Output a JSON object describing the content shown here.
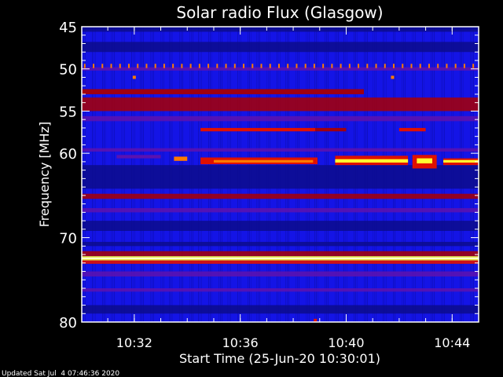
{
  "chart_data": {
    "type": "heatmap",
    "title": "Solar radio Flux (Glasgow)",
    "xlabel": "Start Time (25-Jun-20 10:30:01)",
    "ylabel": "Frequency [MHz]",
    "x_start": "10:30:01",
    "x_end": "10:45:00",
    "xticks": [
      "10:32",
      "10:36",
      "10:40",
      "10:44"
    ],
    "ylim": [
      45,
      80
    ],
    "yticks": [
      45,
      50,
      55,
      60,
      70,
      80
    ],
    "y_inverted": true,
    "colors": {
      "background": "#1414e6",
      "navy": "#0c0c90",
      "purple": "#5a12b0",
      "darkred": "#a00010",
      "red": "#e01000",
      "orange": "#ff7a00",
      "yellow": "#ffff30",
      "white": "#ffffe0"
    },
    "bands": [
      {
        "f0": 45.0,
        "f1": 45.6,
        "level": "navy"
      },
      {
        "f0": 46.8,
        "f1": 48.0,
        "level": "navy"
      },
      {
        "f0": 49.8,
        "f1": 50.2,
        "level": "purple"
      },
      {
        "f0": 53.4,
        "f1": 55.0,
        "level": "darkred"
      },
      {
        "f0": 55.6,
        "f1": 56.2,
        "level": "purple"
      },
      {
        "f0": 59.4,
        "f1": 59.8,
        "level": "purple"
      },
      {
        "f0": 61.4,
        "f1": 64.2,
        "level": "navy"
      },
      {
        "f0": 64.8,
        "f1": 65.4,
        "level": "darkred"
      },
      {
        "f0": 66.5,
        "f1": 67.0,
        "level": "purple"
      },
      {
        "f0": 68.0,
        "f1": 69.2,
        "level": "navy"
      },
      {
        "f0": 70.5,
        "f1": 71.0,
        "level": "navy"
      },
      {
        "f0": 71.6,
        "f1": 72.2,
        "level": "darkred"
      },
      {
        "f0": 72.2,
        "f1": 72.7,
        "level": "yellow"
      },
      {
        "f0": 72.35,
        "f1": 72.55,
        "level": "white"
      },
      {
        "f0": 72.7,
        "f1": 73.1,
        "level": "red"
      },
      {
        "f0": 74.0,
        "f1": 74.6,
        "level": "purple"
      },
      {
        "f0": 76.0,
        "f1": 76.4,
        "level": "purple"
      },
      {
        "f0": 78.0,
        "f1": 79.0,
        "level": "navy"
      }
    ],
    "segments": [
      {
        "t0": "10:30:01",
        "t1": "10:40:40",
        "f0": 52.4,
        "f1": 53.0,
        "level": "darkred"
      },
      {
        "t0": "10:34:30",
        "t1": "10:38:50",
        "f0": 57.0,
        "f1": 57.4,
        "level": "red"
      },
      {
        "t0": "10:38:50",
        "t1": "10:40:00",
        "f0": 57.0,
        "f1": 57.4,
        "level": "darkred"
      },
      {
        "t0": "10:42:00",
        "t1": "10:43:00",
        "f0": 57.0,
        "f1": 57.4,
        "level": "red"
      },
      {
        "t0": "10:31:20",
        "t1": "10:33:00",
        "f0": 60.2,
        "f1": 60.6,
        "level": "purple"
      },
      {
        "t0": "10:33:30",
        "t1": "10:34:00",
        "f0": 60.4,
        "f1": 60.9,
        "level": "orange"
      },
      {
        "t0": "10:34:30",
        "t1": "10:38:55",
        "f0": 60.5,
        "f1": 61.3,
        "level": "red"
      },
      {
        "t0": "10:35:00",
        "t1": "10:38:45",
        "f0": 60.8,
        "f1": 61.1,
        "level": "orange"
      },
      {
        "t0": "10:39:35",
        "t1": "10:42:20",
        "f0": 60.3,
        "f1": 61.4,
        "level": "red"
      },
      {
        "t0": "10:39:35",
        "t1": "10:42:20",
        "f0": 60.7,
        "f1": 61.1,
        "level": "yellow"
      },
      {
        "t0": "10:42:30",
        "t1": "10:43:25",
        "f0": 60.2,
        "f1": 61.8,
        "level": "red"
      },
      {
        "t0": "10:42:40",
        "t1": "10:43:15",
        "f0": 60.6,
        "f1": 61.2,
        "level": "yellow"
      },
      {
        "t0": "10:43:40",
        "t1": "10:45:00",
        "f0": 60.6,
        "f1": 61.4,
        "level": "red"
      },
      {
        "t0": "10:43:40",
        "t1": "10:45:00",
        "f0": 60.8,
        "f1": 61.1,
        "level": "yellow"
      }
    ],
    "markers": {
      "f0": 49.4,
      "f1": 49.9,
      "period_seconds": 20,
      "level": "orange"
    },
    "points": [
      {
        "t": "10:32:00",
        "f": 51.0,
        "level": "orange"
      },
      {
        "t": "10:41:45",
        "f": 51.0,
        "level": "orange"
      },
      {
        "t": "10:38:50",
        "f": 79.8,
        "level": "red"
      }
    ]
  },
  "footer": {
    "updated": "Updated Sat Jul  4 07:46:36 2020"
  }
}
